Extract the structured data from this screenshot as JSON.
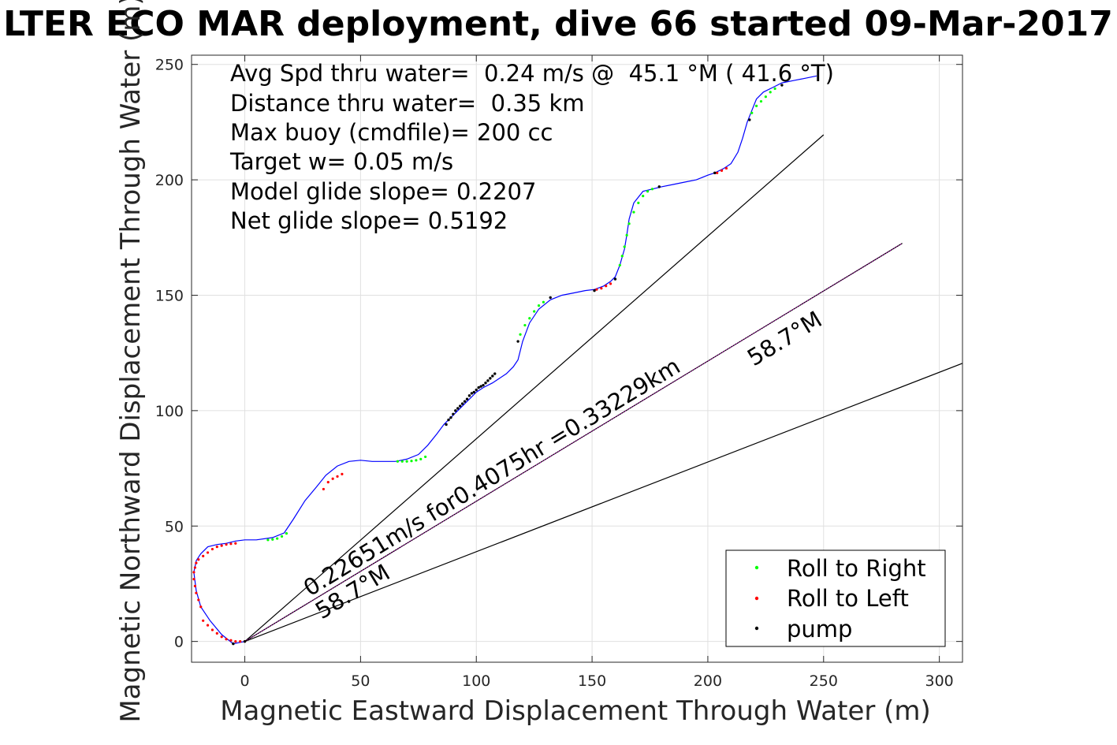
{
  "chart_data": {
    "type": "line",
    "title": "LTER ECO MAR deployment, dive 66 started 09-Mar-2017",
    "xlabel": "Magnetic Eastward Displacement Through Water (m)",
    "ylabel": "Magnetic Northward Displacement Through Water (m)",
    "xlim": [
      -23,
      310
    ],
    "ylim": [
      -9,
      254
    ],
    "xticks": [
      0,
      50,
      100,
      150,
      200,
      250,
      300
    ],
    "yticks": [
      0,
      50,
      100,
      150,
      200,
      250
    ],
    "grid": true,
    "info_lines": [
      "Avg Spd thru water=  0.24 m/s @  45.1 °M ( 41.6 °T)",
      "Distance thru water=  0.35 km",
      "Max buoy (cmdfile)= 200 cc",
      "Target w= 0.05 m/s",
      "Model glide slope= 0.2207",
      "Net glide slope= 0.5192"
    ],
    "annotations": {
      "speed": "0.22651m/s for0.4075hr =0.33229km",
      "heading_near": "58.7°M",
      "heading_far": "58.7°M"
    },
    "legend": {
      "position": "bottom-right",
      "entries": [
        {
          "label": "Roll to Right",
          "color": "#00ff00"
        },
        {
          "label": "Roll to Left",
          "color": "#ff0000"
        },
        {
          "label": "pump",
          "color": "#000000"
        }
      ]
    },
    "series": [
      {
        "color": "#0000ff",
        "x": [
          0,
          -5,
          -10,
          -15,
          -19,
          -21,
          -22,
          -21,
          -19,
          -16,
          -12,
          -8,
          -4,
          0,
          5,
          12,
          17,
          21,
          26,
          31,
          35,
          40,
          45,
          50,
          55,
          60,
          65,
          70,
          75,
          79,
          83,
          86,
          89,
          92,
          95,
          98,
          100,
          103,
          107,
          110,
          113,
          116,
          118,
          120,
          123,
          127,
          132,
          137,
          142,
          147,
          151,
          155,
          158,
          160,
          162,
          164,
          165,
          166,
          168,
          172,
          176,
          180,
          185,
          190,
          195,
          200,
          203,
          207,
          210,
          213,
          215,
          217,
          219,
          221,
          224,
          228,
          232,
          237,
          242,
          247
        ],
        "y": [
          0,
          -1,
          3,
          9,
          15,
          22,
          30,
          35,
          38,
          41,
          42,
          42.5,
          43.5,
          44,
          44,
          45,
          47,
          53,
          61,
          67,
          72,
          76,
          78,
          78.5,
          78,
          78,
          78,
          79,
          81,
          85,
          90,
          94,
          97,
          100,
          103,
          106,
          108,
          110,
          112,
          114,
          116,
          119,
          122,
          130,
          138,
          144,
          148,
          150,
          151,
          152,
          152.5,
          154,
          156,
          158,
          163,
          170,
          176,
          183,
          190,
          195,
          196,
          197,
          198,
          199,
          200,
          202,
          203,
          205,
          207,
          212,
          218,
          225,
          230,
          235,
          238,
          240,
          242,
          243,
          244,
          245
        ]
      },
      {
        "name": "Ray 58.7°M",
        "color": "#000000",
        "x": [
          0,
          284
        ],
        "y": [
          0,
          172.5
        ]
      },
      {
        "name": "Ray upper",
        "color": "#000000",
        "x": [
          0,
          250
        ],
        "y": [
          0,
          219.5
        ]
      },
      {
        "name": "Ray lower",
        "color": "#000000",
        "x": [
          0,
          310
        ],
        "y": [
          0,
          120.5
        ]
      }
    ],
    "markers": {
      "roll_right": {
        "color": "#00ff00",
        "x": [
          10,
          12,
          14,
          16,
          18,
          66,
          68,
          70,
          72,
          74,
          76,
          78,
          119,
          121,
          123,
          125,
          127,
          129,
          162,
          163,
          164,
          165,
          166,
          168,
          170,
          172,
          174,
          176,
          219,
          221,
          223,
          225,
          227,
          229
        ],
        "y": [
          44,
          44.2,
          44.6,
          45.5,
          46.8,
          78,
          78,
          78,
          78.2,
          78.5,
          79,
          80,
          133,
          137,
          140,
          143,
          145.5,
          147,
          163,
          167,
          171,
          176,
          181,
          186,
          190,
          193,
          195,
          196,
          229,
          232,
          234,
          236,
          238,
          239.5
        ]
      },
      "roll_left": {
        "color": "#ff0000",
        "x": [
          -19,
          -20,
          -21,
          -21.5,
          -22,
          -22,
          -21.5,
          -21,
          -20,
          -18,
          -16,
          -14,
          -12,
          -10,
          -8,
          -6,
          -4,
          -18,
          -16,
          -14,
          -12,
          -10,
          -8,
          -6,
          -4,
          -2,
          0,
          34,
          36,
          38,
          40,
          42,
          152,
          154,
          156,
          158,
          204,
          206,
          208
        ],
        "y": [
          15,
          18,
          21,
          24,
          27,
          30,
          32,
          34,
          35.5,
          37,
          38.5,
          40,
          41,
          41.5,
          42,
          42.3,
          42.5,
          9,
          7,
          5,
          3.5,
          2,
          1,
          0.5,
          0,
          0,
          0,
          66,
          69,
          70.5,
          71.5,
          72.5,
          152.5,
          153,
          154,
          155,
          203,
          204,
          205
        ]
      },
      "pump": {
        "color": "#000000",
        "x": [
          0,
          -5,
          87,
          88,
          89,
          90,
          91,
          92,
          93,
          94,
          95,
          96,
          97,
          98,
          99,
          100,
          101,
          102,
          103,
          104,
          105,
          106,
          107,
          108,
          118,
          132,
          151,
          160,
          179,
          203,
          218,
          232
        ],
        "y": [
          0,
          -1,
          94,
          96,
          97,
          98.5,
          100,
          101,
          102,
          103,
          104,
          105,
          106.5,
          107.5,
          108,
          109,
          110,
          110.5,
          111,
          112,
          113,
          114,
          115,
          116,
          130,
          149,
          152,
          157,
          197,
          203,
          226,
          241
        ]
      }
    }
  }
}
